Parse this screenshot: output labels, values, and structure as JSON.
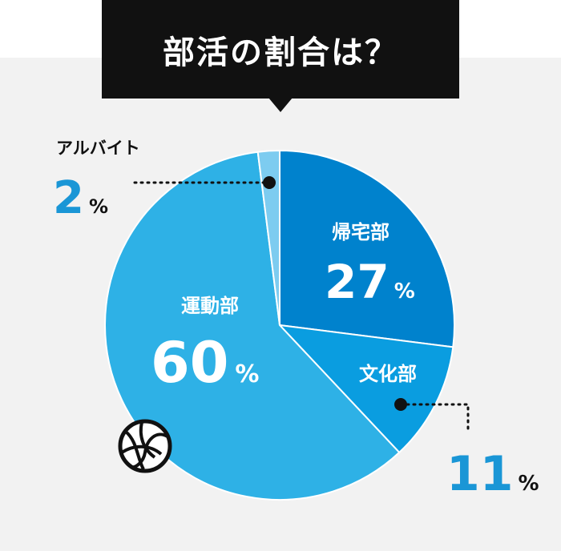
{
  "title": "部活の割合は？",
  "colors": {
    "title_bg": "#111111",
    "background": "#f2f2f2",
    "slice_kitaku": "#0082cd",
    "slice_bunka": "#0a9de0",
    "slice_undo": "#2eb1e6",
    "slice_arbeit": "#7dccf0",
    "outside_number": "#1a96d6"
  },
  "chart_data": {
    "type": "pie",
    "start_angle_deg": 0,
    "direction": "clockwise",
    "slices": [
      {
        "label": "帰宅部",
        "value": 27,
        "unit": "%",
        "color": "#0082cd",
        "label_position": "inside"
      },
      {
        "label": "文化部",
        "value": 11,
        "unit": "%",
        "color": "#0a9de0",
        "label_position": "mixed"
      },
      {
        "label": "運動部",
        "value": 60,
        "unit": "%",
        "color": "#2eb1e6",
        "label_position": "inside"
      },
      {
        "label": "アルバイト",
        "value": 2,
        "unit": "%",
        "color": "#7dccf0",
        "label_position": "outside"
      }
    ]
  },
  "icons": {
    "decoration": "volleyball-icon"
  }
}
